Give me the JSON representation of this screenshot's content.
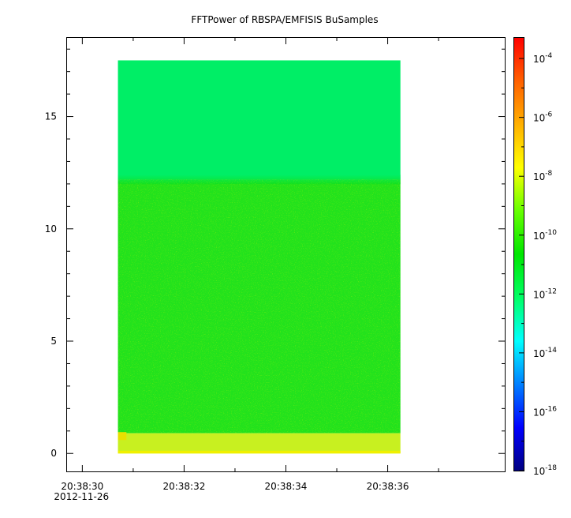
{
  "chart_data": {
    "type": "heatmap",
    "title": "FFTPower of RBSPA/EMFISIS  BuSamples",
    "xlabel": "",
    "ylabel": "",
    "x_axis": {
      "type": "time",
      "range": [
        "20:38:29.7",
        "20:38:38.3"
      ],
      "ticks": [
        {
          "value": 30,
          "label": "20:38:30",
          "sublabel": "2012-11-26"
        },
        {
          "value": 32,
          "label": "20:38:32"
        },
        {
          "value": 34,
          "label": "20:38:34"
        },
        {
          "value": 36,
          "label": "20:38:36"
        }
      ],
      "minor_ticks": [
        31,
        33,
        35,
        37
      ]
    },
    "y_axis": {
      "range": [
        -0.8,
        18.5
      ],
      "ticks": [
        0,
        5,
        10,
        15
      ],
      "tick_labels": [
        "0",
        "5",
        "10",
        "15"
      ],
      "minor_ticks": [
        1,
        2,
        3,
        4,
        6,
        7,
        8,
        9,
        11,
        12,
        13,
        14,
        16,
        17,
        18
      ]
    },
    "data_extent": {
      "x_start": "20:38:30.7",
      "x_end": "20:38:36.25",
      "y_min": 0.0,
      "y_max": 17.5
    },
    "bands": [
      {
        "y_from": 12.2,
        "y_to": 17.5,
        "level": -12.5,
        "color_name": "green-cyan"
      },
      {
        "y_from": 0.9,
        "y_to": 12.2,
        "level": -10.3,
        "color_name": "green"
      },
      {
        "y_from": 0.0,
        "y_to": 0.9,
        "level": -9.0,
        "color_name": "yellow-green"
      }
    ],
    "colorbar": {
      "scale": "log",
      "range": [
        -18,
        -3.3
      ],
      "ticks": [
        {
          "base": "10",
          "exp": "-4",
          "value": -4
        },
        {
          "base": "10",
          "exp": "-6",
          "value": -6
        },
        {
          "base": "10",
          "exp": "-8",
          "value": -8
        },
        {
          "base": "10",
          "exp": "-10",
          "value": -10
        },
        {
          "base": "10",
          "exp": "-12",
          "value": -12
        },
        {
          "base": "10",
          "exp": "-14",
          "value": -14
        },
        {
          "base": "10",
          "exp": "-16",
          "value": -16
        },
        {
          "base": "10",
          "exp": "-18",
          "value": -18
        }
      ],
      "colormap": [
        "#00007f",
        "#0000ff",
        "#007fff",
        "#00ffff",
        "#00ff66",
        "#00e600",
        "#66ff00",
        "#ffff00",
        "#ffb000",
        "#ff6000",
        "#ff0000"
      ]
    },
    "grid": false,
    "legend": "none"
  }
}
